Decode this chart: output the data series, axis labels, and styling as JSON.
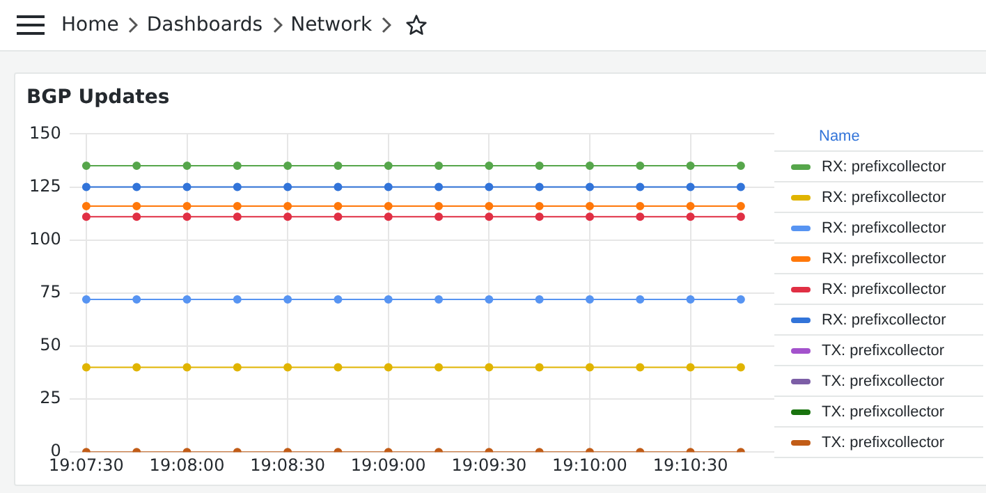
{
  "chart_data": {
    "type": "line",
    "title": "BGP Updates",
    "legend_title": "Name",
    "legend": "right",
    "grid": true,
    "marker": "circle",
    "line_style": "solid",
    "annotations": [
      "Home",
      "Dashboards",
      "Network"
    ],
    "x": [
      19.125,
      19.129167,
      19.133333,
      19.1375,
      19.141667,
      19.145833,
      19.15,
      19.154167,
      19.158333,
      19.1625,
      19.166667,
      19.170833,
      19.175,
      19.179167
    ],
    "xlim": [
      19.12361,
      19.18194
    ],
    "xticks": [
      {
        "value": 19.125,
        "label": "19:07:30"
      },
      {
        "value": 19.133333,
        "label": "19:08:00"
      },
      {
        "value": 19.141667,
        "label": "19:08:30"
      },
      {
        "value": 19.15,
        "label": "19:09:00"
      },
      {
        "value": 19.158333,
        "label": "19:09:30"
      },
      {
        "value": 19.166667,
        "label": "19:10:00"
      },
      {
        "value": 19.175,
        "label": "19:10:30"
      }
    ],
    "ylim": [
      0,
      150
    ],
    "yticks": [
      0,
      25,
      50,
      75,
      100,
      125,
      150
    ],
    "series": [
      {
        "name": "RX: prefixcollector",
        "color": "#56a64b",
        "values": [
          135,
          135,
          135,
          135,
          135,
          135,
          135,
          135,
          135,
          135,
          135,
          135,
          135,
          135
        ]
      },
      {
        "name": "RX: prefixcollector",
        "color": "#e0b400",
        "values": [
          40,
          40,
          40,
          40,
          40,
          40,
          40,
          40,
          40,
          40,
          40,
          40,
          40,
          40
        ]
      },
      {
        "name": "RX: prefixcollector",
        "color": "#5794f2",
        "values": [
          72,
          72,
          72,
          72,
          72,
          72,
          72,
          72,
          72,
          72,
          72,
          72,
          72,
          72
        ]
      },
      {
        "name": "RX: prefixcollector",
        "color": "#ff780a",
        "values": [
          116,
          116,
          116,
          116,
          116,
          116,
          116,
          116,
          116,
          116,
          116,
          116,
          116,
          116
        ]
      },
      {
        "name": "RX: prefixcollector",
        "color": "#e02f44",
        "values": [
          111,
          111,
          111,
          111,
          111,
          111,
          111,
          111,
          111,
          111,
          111,
          111,
          111,
          111
        ]
      },
      {
        "name": "RX: prefixcollector",
        "color": "#3274d9",
        "values": [
          125,
          125,
          125,
          125,
          125,
          125,
          125,
          125,
          125,
          125,
          125,
          125,
          125,
          125
        ]
      },
      {
        "name": "TX: prefixcollector",
        "color": "#a352cc",
        "values": [
          null,
          null,
          null,
          null,
          null,
          null,
          null,
          null,
          null,
          null,
          null,
          null,
          null,
          null
        ]
      },
      {
        "name": "TX: prefixcollector",
        "color": "#7c5ea6",
        "values": [
          null,
          null,
          null,
          null,
          null,
          null,
          null,
          null,
          null,
          null,
          null,
          null,
          null,
          null
        ]
      },
      {
        "name": "TX: prefixcollector",
        "color": "#19730e",
        "values": [
          null,
          null,
          null,
          null,
          null,
          null,
          null,
          null,
          null,
          null,
          null,
          null,
          null,
          null
        ]
      },
      {
        "name": "TX: prefixcollector",
        "color": "#c15c17",
        "values": [
          0,
          0,
          0,
          0,
          0,
          0,
          0,
          0,
          0,
          0,
          0,
          0,
          0,
          0
        ]
      }
    ]
  }
}
